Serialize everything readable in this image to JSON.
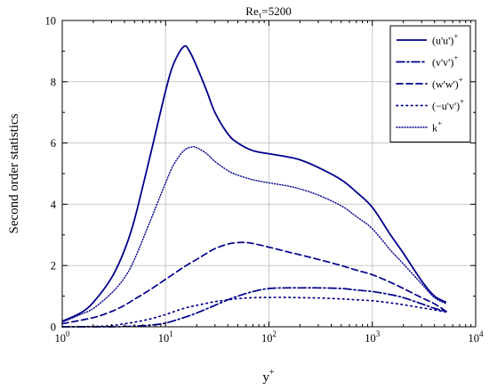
{
  "colors": {
    "series": "#00008b",
    "grid": "#c8c8c8",
    "axis": "#000000"
  },
  "chart_data": {
    "type": "line",
    "title": {
      "main": "Re",
      "sub": "τ",
      "tail": "=5200"
    },
    "xlabel": {
      "base": "y",
      "sup": "+"
    },
    "ylabel": "Second order statistics",
    "x_scale": "log",
    "xlim": [
      1,
      10000
    ],
    "ylim": [
      0,
      10
    ],
    "grid": true,
    "legend_position": "top-right",
    "x_ticks": [
      {
        "value": 1,
        "base": "10",
        "exp": "0"
      },
      {
        "value": 10,
        "base": "10",
        "exp": "1"
      },
      {
        "value": 100,
        "base": "10",
        "exp": "2"
      },
      {
        "value": 1000,
        "base": "10",
        "exp": "3"
      },
      {
        "value": 10000,
        "base": "10",
        "exp": "4"
      }
    ],
    "y_ticks": [
      {
        "value": 0,
        "label": "0"
      },
      {
        "value": 2,
        "label": "2"
      },
      {
        "value": 4,
        "label": "4"
      },
      {
        "value": 6,
        "label": "6"
      },
      {
        "value": 8,
        "label": "8"
      },
      {
        "value": 10,
        "label": "10"
      }
    ],
    "series": [
      {
        "name": "(u'u')",
        "sup": "+",
        "dash": "solid",
        "x": [
          1,
          1.5,
          2,
          3,
          4,
          5,
          7,
          10,
          12,
          15,
          17,
          20,
          25,
          30,
          40,
          50,
          70,
          100,
          150,
          200,
          300,
          500,
          700,
          1000,
          1500,
          2000,
          3000,
          4000,
          5200
        ],
        "y": [
          0.18,
          0.45,
          0.8,
          1.6,
          2.5,
          3.5,
          5.5,
          7.7,
          8.6,
          9.15,
          9.0,
          8.5,
          7.7,
          7.0,
          6.3,
          6.0,
          5.75,
          5.65,
          5.55,
          5.45,
          5.2,
          4.8,
          4.4,
          3.9,
          3.0,
          2.4,
          1.5,
          1.0,
          0.8
        ]
      },
      {
        "name": "(v'v')",
        "sup": "+",
        "dash": "dashdot",
        "x": [
          1,
          2,
          3,
          4,
          5,
          7,
          10,
          15,
          20,
          30,
          40,
          50,
          70,
          100,
          150,
          200,
          300,
          500,
          700,
          1000,
          1500,
          2000,
          3000,
          4000,
          5200
        ],
        "y": [
          0,
          0,
          0,
          0.01,
          0.02,
          0.05,
          0.12,
          0.3,
          0.45,
          0.7,
          0.88,
          1.0,
          1.15,
          1.25,
          1.27,
          1.27,
          1.27,
          1.25,
          1.2,
          1.15,
          1.05,
          0.95,
          0.75,
          0.6,
          0.5
        ]
      },
      {
        "name": "(w'w')",
        "sup": "+",
        "dash": "dashed",
        "x": [
          1,
          2,
          3,
          4,
          5,
          7,
          10,
          15,
          20,
          25,
          30,
          40,
          50,
          60,
          70,
          100,
          150,
          200,
          300,
          500,
          700,
          1000,
          1500,
          2000,
          3000,
          4000,
          5200
        ],
        "y": [
          0.1,
          0.3,
          0.5,
          0.7,
          0.9,
          1.2,
          1.55,
          1.95,
          2.2,
          2.4,
          2.55,
          2.7,
          2.75,
          2.75,
          2.72,
          2.6,
          2.45,
          2.35,
          2.2,
          2.0,
          1.85,
          1.7,
          1.45,
          1.25,
          0.95,
          0.75,
          0.5
        ]
      },
      {
        "name": "(−u'v')",
        "sup": "+",
        "dash": "dotted",
        "x": [
          1,
          2,
          3,
          4,
          5,
          7,
          10,
          15,
          20,
          30,
          40,
          50,
          70,
          100,
          150,
          200,
          300,
          500,
          700,
          1000,
          1500,
          2000,
          3000,
          4000,
          5200
        ],
        "y": [
          0,
          0.01,
          0.04,
          0.1,
          0.15,
          0.25,
          0.4,
          0.6,
          0.7,
          0.82,
          0.88,
          0.92,
          0.95,
          0.96,
          0.96,
          0.95,
          0.94,
          0.91,
          0.88,
          0.85,
          0.78,
          0.72,
          0.62,
          0.55,
          0.48
        ]
      },
      {
        "name": "k",
        "sup": "+",
        "dash": "densedot",
        "x": [
          1,
          1.5,
          2,
          3,
          4,
          5,
          7,
          10,
          12,
          15,
          18,
          20,
          25,
          30,
          40,
          50,
          70,
          100,
          150,
          200,
          300,
          500,
          700,
          1000,
          1500,
          2000,
          3000,
          4000,
          5200
        ],
        "y": [
          0.15,
          0.4,
          0.6,
          1.1,
          1.6,
          2.2,
          3.4,
          4.7,
          5.3,
          5.75,
          5.87,
          5.85,
          5.65,
          5.4,
          5.1,
          4.95,
          4.8,
          4.7,
          4.6,
          4.5,
          4.3,
          3.95,
          3.6,
          3.2,
          2.5,
          2.05,
          1.4,
          0.95,
          0.75
        ]
      }
    ]
  }
}
